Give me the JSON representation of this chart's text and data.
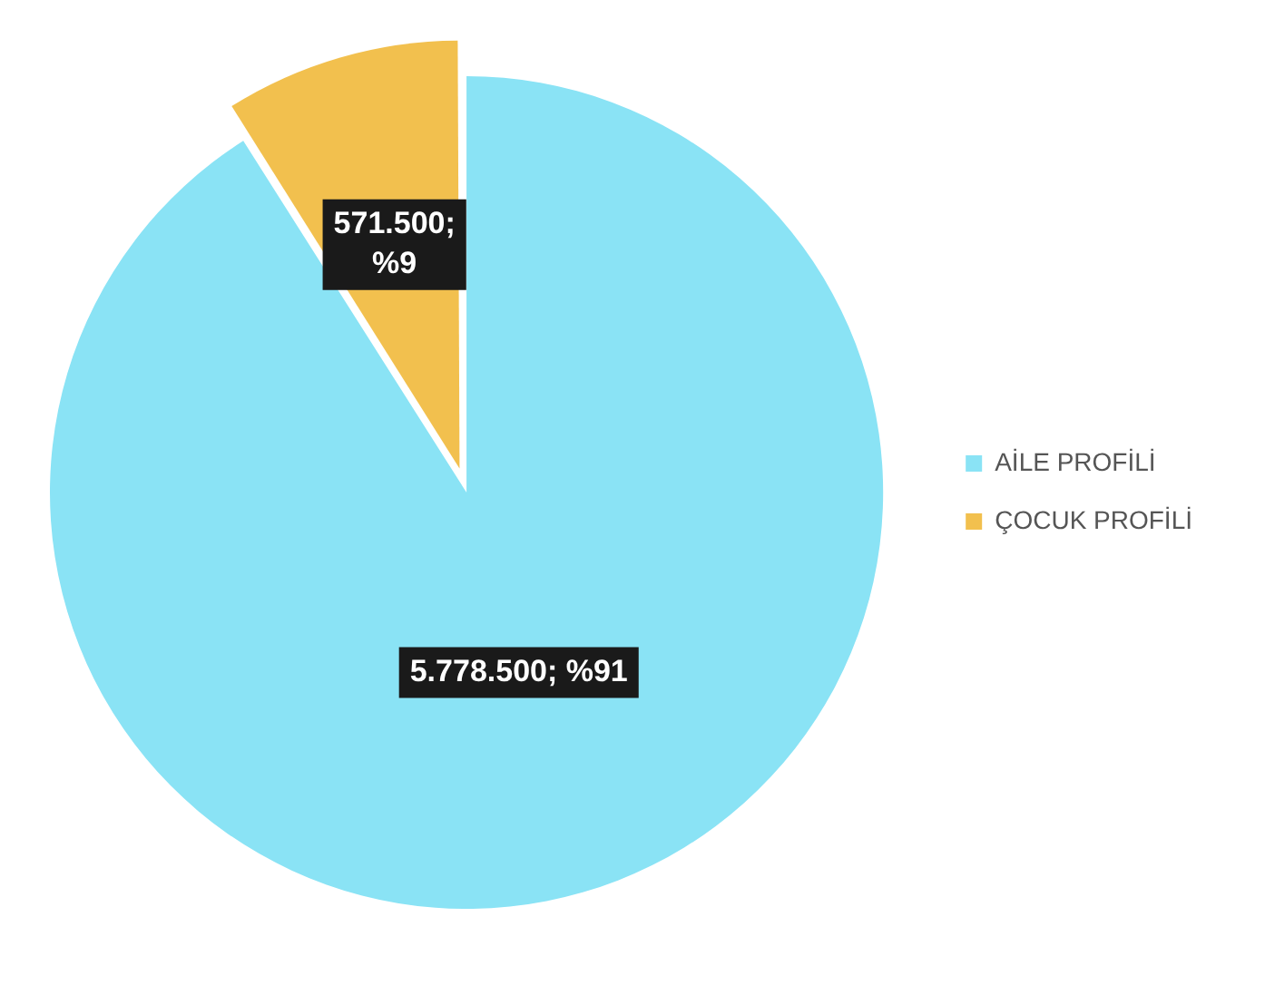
{
  "chart_data": {
    "type": "pie",
    "categories": [
      "AİLE PROFİLİ",
      "ÇOCUK PROFİLİ"
    ],
    "values": [
      5778500,
      571500
    ],
    "colors": [
      "#8ae3f5",
      "#f2c04e"
    ],
    "value_labels": [
      "5.778.500; %91",
      "571.500; %9"
    ],
    "legend": "right"
  }
}
